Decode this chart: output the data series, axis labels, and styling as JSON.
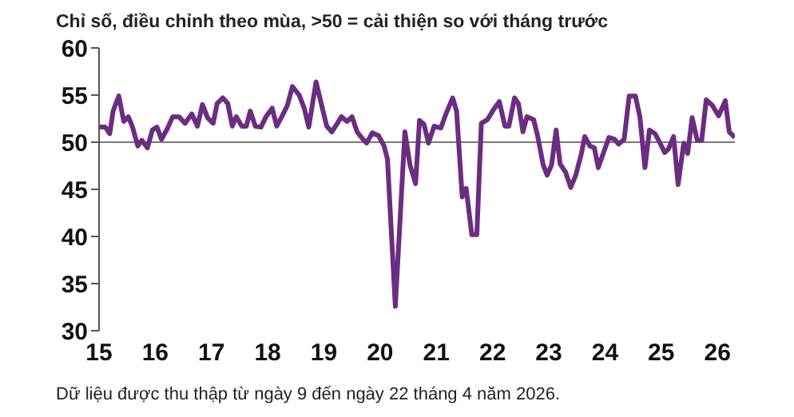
{
  "chart_data": {
    "type": "line",
    "subtitle": "Chỉ số, điều chỉnh theo mùa, >50 = cải thiện so với tháng trước",
    "annotations": [
      "Dữ liệu được thu thập từ ngày 9 đến ngày 22 tháng 4 năm 2026."
    ],
    "series": [
      {
        "color": "#6b2d82",
        "x": [
          2015.0,
          2015.11,
          2015.19,
          2015.25,
          2015.35,
          2015.44,
          2015.52,
          2015.59,
          2015.69,
          2015.76,
          2015.86,
          2015.95,
          2016.03,
          2016.11,
          2016.22,
          2016.31,
          2016.42,
          2016.53,
          2016.65,
          2016.75,
          2016.84,
          2016.93,
          2017.03,
          2017.1,
          2017.2,
          2017.29,
          2017.37,
          2017.44,
          2017.54,
          2017.62,
          2017.69,
          2017.78,
          2017.88,
          2017.97,
          2018.08,
          2018.16,
          2018.25,
          2018.35,
          2018.44,
          2018.56,
          2018.65,
          2018.73,
          2018.86,
          2018.96,
          2019.05,
          2019.14,
          2019.24,
          2019.31,
          2019.41,
          2019.5,
          2019.59,
          2019.71,
          2019.76,
          2019.86,
          2019.97,
          2020.07,
          2020.13,
          2020.27,
          2020.44,
          2020.53,
          2020.63,
          2020.7,
          2020.78,
          2020.86,
          2020.96,
          2021.08,
          2021.17,
          2021.29,
          2021.36,
          2021.46,
          2021.53,
          2021.63,
          2021.72,
          2021.8,
          2021.91,
          2022.01,
          2022.12,
          2022.22,
          2022.29,
          2022.39,
          2022.46,
          2022.54,
          2022.61,
          2022.73,
          2022.8,
          2022.9,
          2022.97,
          2023.05,
          2023.13,
          2023.2,
          2023.3,
          2023.39,
          2023.48,
          2023.58,
          2023.64,
          2023.73,
          2023.81,
          2023.88,
          2023.98,
          2024.07,
          2024.17,
          2024.24,
          2024.34,
          2024.43,
          2024.54,
          2024.62,
          2024.71,
          2024.79,
          2024.89,
          2024.98,
          2025.06,
          2025.13,
          2025.22,
          2025.3,
          2025.4,
          2025.47,
          2025.55,
          2025.64,
          2025.72,
          2025.8,
          2025.91,
          2026.02,
          2026.14,
          2026.21,
          2026.31
        ],
        "values": [
          51.6,
          51.6,
          50.9,
          53.3,
          54.9,
          52.2,
          52.7,
          51.7,
          49.6,
          50.2,
          49.4,
          51.3,
          51.6,
          50.3,
          51.5,
          52.7,
          52.7,
          52.0,
          53.0,
          51.7,
          54.0,
          52.6,
          52.0,
          54.1,
          54.7,
          54.1,
          51.7,
          52.7,
          51.7,
          51.7,
          53.3,
          51.7,
          51.6,
          52.7,
          53.6,
          51.7,
          52.7,
          53.9,
          55.9,
          55.0,
          53.6,
          51.6,
          56.4,
          53.9,
          51.7,
          51.1,
          52.0,
          52.7,
          52.2,
          52.7,
          51.1,
          50.2,
          49.9,
          51.0,
          50.7,
          49.6,
          48.2,
          32.6,
          51.1,
          47.6,
          45.6,
          52.3,
          51.9,
          49.9,
          51.7,
          51.5,
          53.0,
          54.7,
          53.3,
          44.2,
          45.1,
          40.2,
          40.2,
          52.0,
          52.4,
          53.4,
          54.3,
          51.7,
          51.7,
          54.7,
          54.1,
          51.1,
          52.7,
          52.4,
          50.7,
          47.6,
          46.5,
          47.6,
          51.3,
          47.7,
          46.8,
          45.2,
          46.5,
          48.8,
          50.6,
          49.6,
          49.4,
          47.3,
          49.0,
          50.5,
          50.3,
          49.8,
          50.3,
          54.9,
          54.9,
          52.7,
          47.3,
          51.3,
          50.9,
          49.9,
          48.9,
          49.3,
          50.6,
          45.5,
          49.9,
          48.8,
          52.6,
          50.2,
          50.2,
          54.5,
          53.9,
          52.8,
          54.4,
          51.1,
          50.5
        ]
      }
    ],
    "xlim": [
      2015,
      2026.31
    ],
    "xticks": [
      {
        "value": 2015,
        "label": "15"
      },
      {
        "value": 2016,
        "label": "16"
      },
      {
        "value": 2017,
        "label": "17"
      },
      {
        "value": 2018,
        "label": "18"
      },
      {
        "value": 2019,
        "label": "19"
      },
      {
        "value": 2020,
        "label": "20"
      },
      {
        "value": 2021,
        "label": "21"
      },
      {
        "value": 2022,
        "label": "22"
      },
      {
        "value": 2023,
        "label": "23"
      },
      {
        "value": 2024,
        "label": "24"
      },
      {
        "value": 2025,
        "label": "25"
      },
      {
        "value": 2026,
        "label": "26"
      }
    ],
    "ylim": [
      30,
      60
    ],
    "yticks": [
      30,
      35,
      40,
      45,
      50,
      55,
      60
    ],
    "ref_lines": [
      {
        "axis": "y",
        "value": 50,
        "color": "#777777"
      }
    ],
    "grid": false,
    "legend": false,
    "marker": "none",
    "line_style": "solid"
  }
}
